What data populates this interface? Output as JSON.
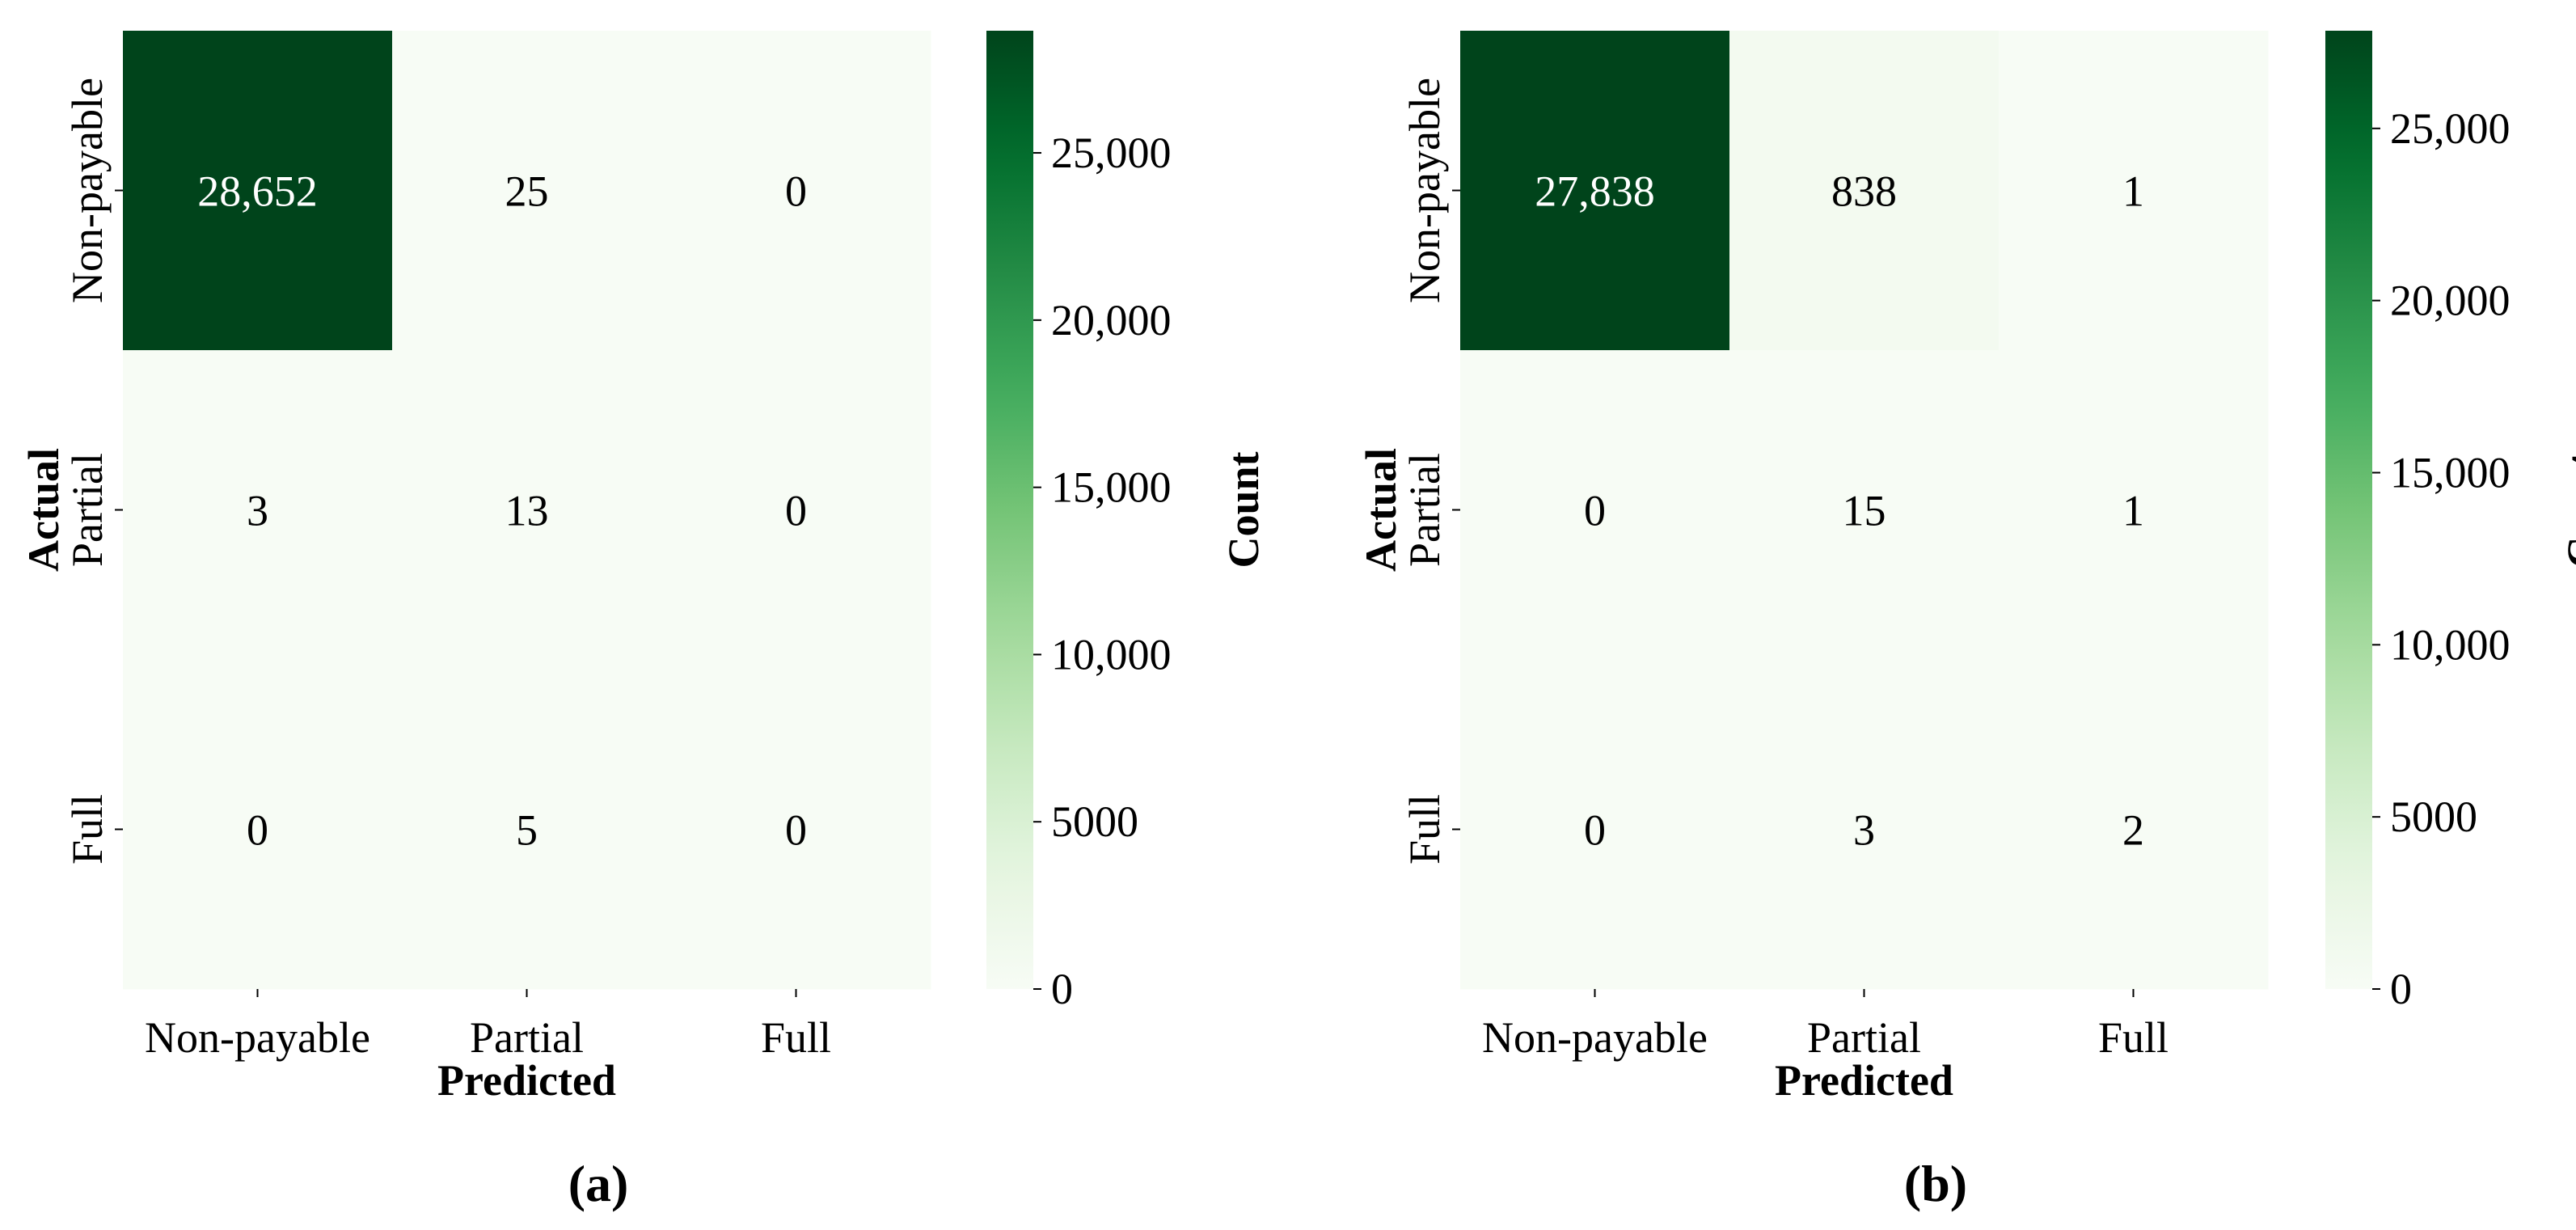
{
  "chart_data": [
    {
      "type": "heatmap",
      "panel_label": "(a)",
      "xlabel": "Predicted",
      "ylabel": "Actual",
      "x_categories": [
        "Non-payable",
        "Partial",
        "Full"
      ],
      "y_categories": [
        "Non-payable",
        "Partial",
        "Full"
      ],
      "values": [
        [
          28652,
          25,
          0
        ],
        [
          3,
          13,
          0
        ],
        [
          0,
          5,
          0
        ]
      ],
      "value_labels": [
        [
          "28,652",
          "25",
          "0"
        ],
        [
          "3",
          "13",
          "0"
        ],
        [
          "0",
          "5",
          "0"
        ]
      ],
      "colorbar": {
        "label": "Count",
        "range": [
          0,
          28652
        ],
        "ticks": [
          0,
          5000,
          10000,
          15000,
          20000,
          25000
        ],
        "tick_labels": [
          "0",
          "5000",
          "10,000",
          "15,000",
          "20,000",
          "25,000"
        ]
      }
    },
    {
      "type": "heatmap",
      "panel_label": "(b)",
      "xlabel": "Predicted",
      "ylabel": "Actual",
      "x_categories": [
        "Non-payable",
        "Partial",
        "Full"
      ],
      "y_categories": [
        "Non-payable",
        "Partial",
        "Full"
      ],
      "values": [
        [
          27838,
          838,
          1
        ],
        [
          0,
          15,
          1
        ],
        [
          0,
          3,
          2
        ]
      ],
      "value_labels": [
        [
          "27,838",
          "838",
          "1"
        ],
        [
          "0",
          "15",
          "1"
        ],
        [
          "0",
          "3",
          "2"
        ]
      ],
      "colorbar": {
        "label": "Count",
        "range": [
          0,
          27838
        ],
        "ticks": [
          0,
          5000,
          10000,
          15000,
          20000,
          25000
        ],
        "tick_labels": [
          "0",
          "5000",
          "10,000",
          "15,000",
          "20,000",
          "25,000"
        ]
      }
    }
  ],
  "colors": {
    "colormap": "Greens",
    "low": "#f7fcf5",
    "high": "#00441b",
    "text_on_dark": "#ffffff",
    "text_on_light": "#000000"
  }
}
